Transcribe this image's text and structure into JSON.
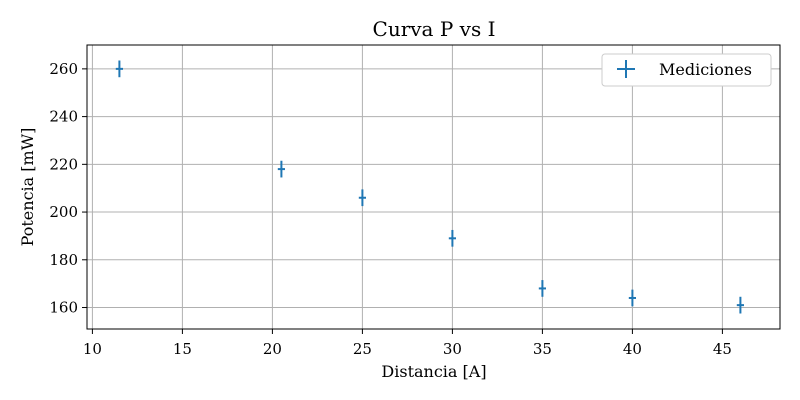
{
  "chart_data": {
    "type": "scatter",
    "title": "Curva P vs I",
    "xlabel": "Distancia [A]",
    "ylabel": "Potencia [mW]",
    "xlim": [
      9.7,
      48.2
    ],
    "ylim": [
      151,
      270
    ],
    "x_ticks": [
      10,
      15,
      20,
      25,
      30,
      35,
      40,
      45
    ],
    "y_ticks": [
      160,
      180,
      200,
      220,
      240,
      260
    ],
    "grid": true,
    "legend_position": "top-right",
    "series": [
      {
        "name": "Mediciones",
        "color": "#1f77b4",
        "marker": "errorbar",
        "x": [
          11.5,
          20.5,
          25,
          30,
          35,
          40,
          46
        ],
        "y": [
          260,
          218,
          206,
          189,
          168,
          164,
          161
        ],
        "x_err": [
          0.2,
          0.2,
          0.2,
          0.2,
          0.2,
          0.2,
          0.2
        ],
        "y_err": [
          3.5,
          3.5,
          3.5,
          3.5,
          3.5,
          3.5,
          3.5
        ]
      }
    ]
  }
}
